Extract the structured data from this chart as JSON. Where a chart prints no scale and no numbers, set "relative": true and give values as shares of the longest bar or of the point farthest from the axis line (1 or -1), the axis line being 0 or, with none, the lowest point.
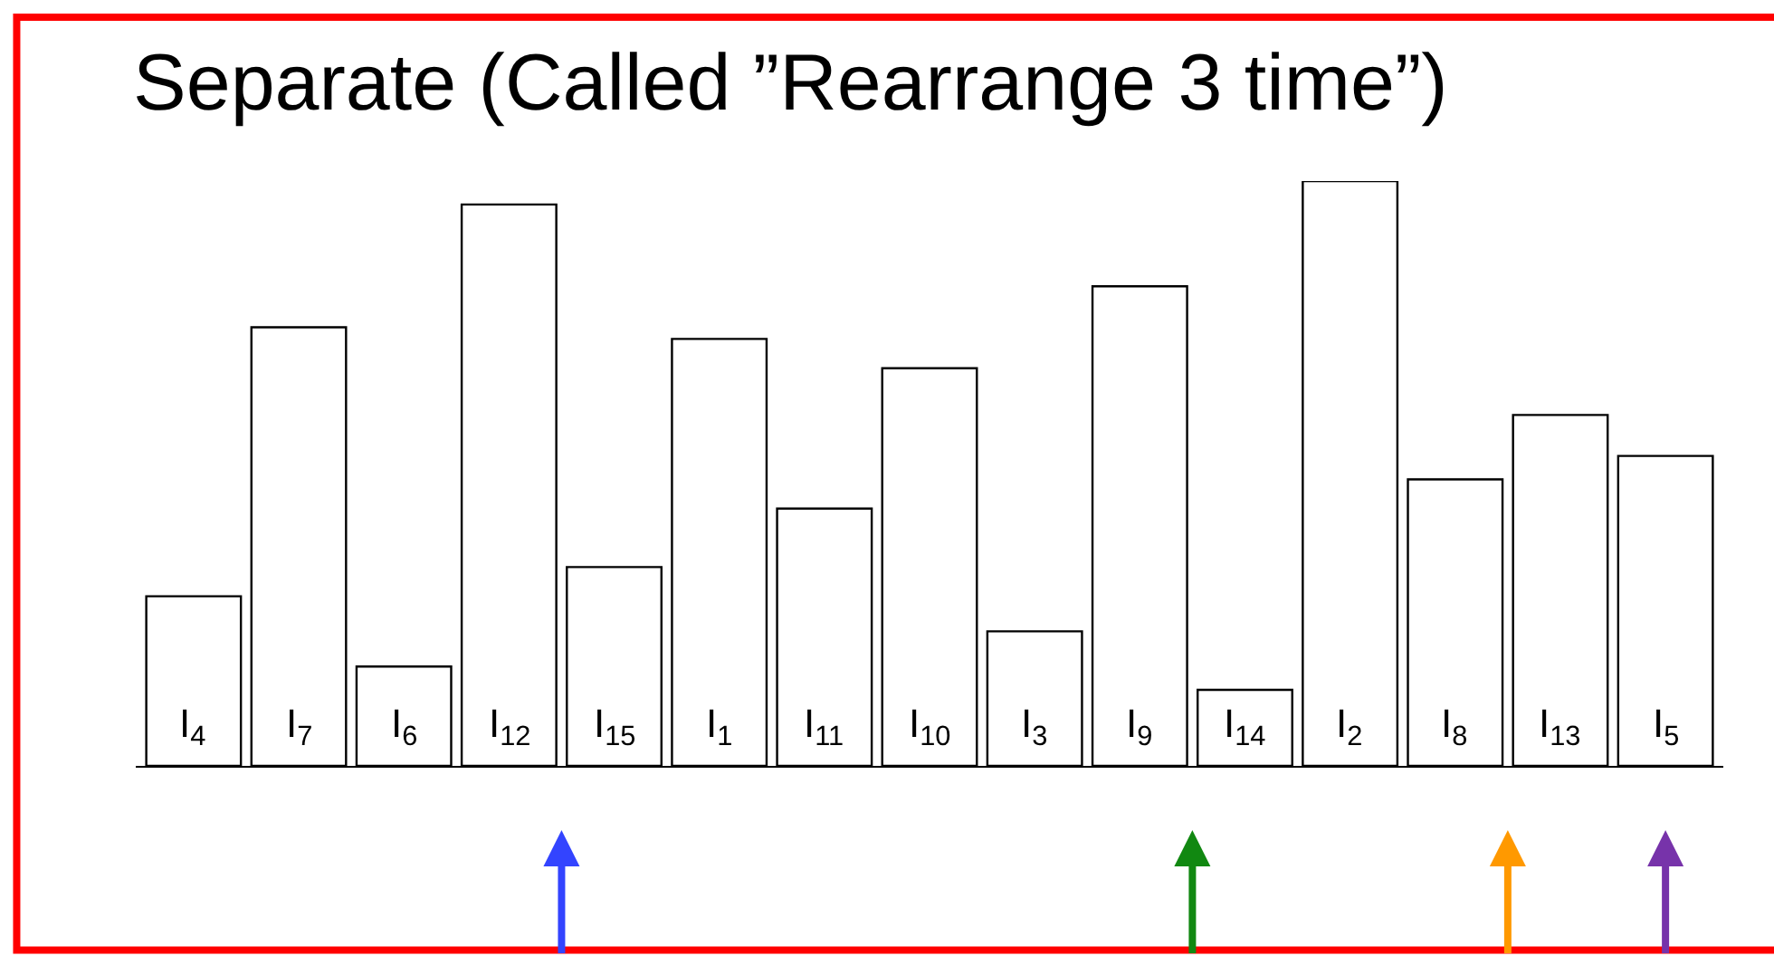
{
  "chart_data": {
    "type": "bar",
    "title": "Separate (Called ”Rearrange 3 time”)",
    "relative": true,
    "categories": [
      "I$_{4}$",
      "I$_{7}$",
      "I$_{6}$",
      "I$_{12}$",
      "I$_{15}$",
      "I$_{1}$",
      "I$_{11}$",
      "I$_{10}$",
      "I$_{3}$",
      "I$_{9}$",
      "I$_{14}$",
      "I$_{2}$",
      "I$_{8}$",
      "I$_{13}$",
      "I$_{5}$"
    ],
    "values": [
      0.29,
      0.75,
      0.17,
      0.96,
      0.34,
      0.73,
      0.44,
      0.68,
      0.23,
      0.82,
      0.13,
      1,
      0.49,
      0.6,
      0.53
    ],
    "color": "#ffffff"
  }
}
